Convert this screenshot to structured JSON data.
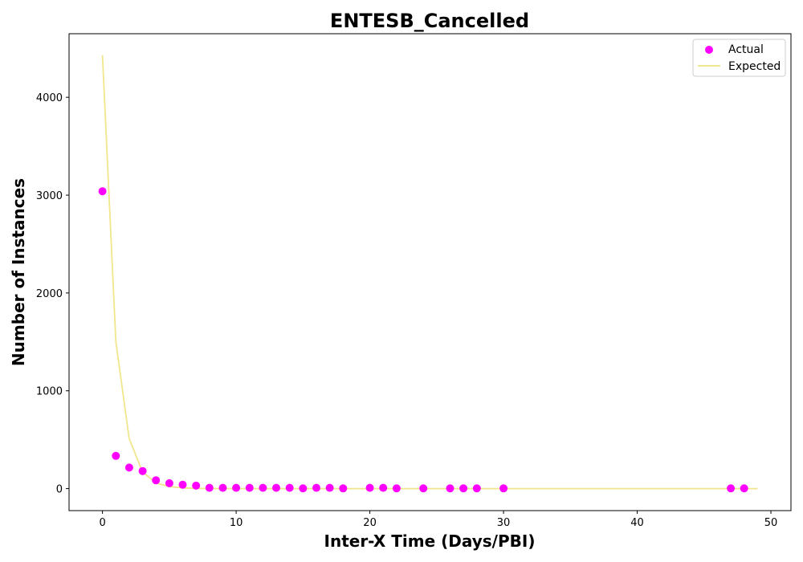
{
  "chart_data": {
    "type": "scatter",
    "title": "ENTESB_Cancelled",
    "xlabel": "Inter-X Time (Days/PBI)",
    "ylabel": "Number of Instances",
    "xlim": [
      -2.5,
      51.5
    ],
    "ylim": [
      -225,
      4650
    ],
    "xticks": [
      0,
      10,
      20,
      30,
      40,
      50
    ],
    "yticks": [
      0,
      1000,
      2000,
      3000,
      4000
    ],
    "grid": false,
    "legend_position": "top-right",
    "series": [
      {
        "name": "Actual",
        "kind": "scatter",
        "color": "#ff00ff",
        "x": [
          0,
          1,
          2,
          3,
          4,
          5,
          6,
          7,
          8,
          9,
          10,
          11,
          12,
          13,
          14,
          15,
          16,
          17,
          18,
          20,
          21,
          22,
          24,
          26,
          27,
          28,
          30,
          47,
          48
        ],
        "y": [
          3040,
          335,
          215,
          180,
          85,
          55,
          40,
          30,
          8,
          8,
          8,
          8,
          8,
          8,
          8,
          2,
          8,
          8,
          2,
          8,
          8,
          2,
          2,
          2,
          2,
          2,
          2,
          2,
          2
        ]
      },
      {
        "name": "Expected",
        "kind": "line",
        "color": "#f0e68c",
        "x": [
          0,
          1,
          2,
          3,
          4,
          5,
          6,
          7,
          8,
          9,
          10,
          11,
          12,
          13,
          14,
          15,
          16,
          17,
          18,
          19,
          20,
          21,
          22,
          23,
          24,
          25,
          26,
          27,
          28,
          29,
          30,
          31,
          32,
          33,
          34,
          35,
          36,
          37,
          38,
          39,
          40,
          41,
          42,
          43,
          44,
          45,
          46,
          47,
          48,
          49
        ],
        "y": [
          4430,
          1500,
          510,
          170,
          58,
          20,
          7,
          2,
          1,
          0,
          0,
          0,
          0,
          0,
          0,
          0,
          0,
          0,
          0,
          0,
          0,
          0,
          0,
          0,
          0,
          0,
          0,
          0,
          0,
          0,
          0,
          0,
          0,
          0,
          0,
          0,
          0,
          0,
          0,
          0,
          0,
          0,
          0,
          0,
          0,
          0,
          0,
          0,
          0,
          0
        ]
      }
    ]
  }
}
